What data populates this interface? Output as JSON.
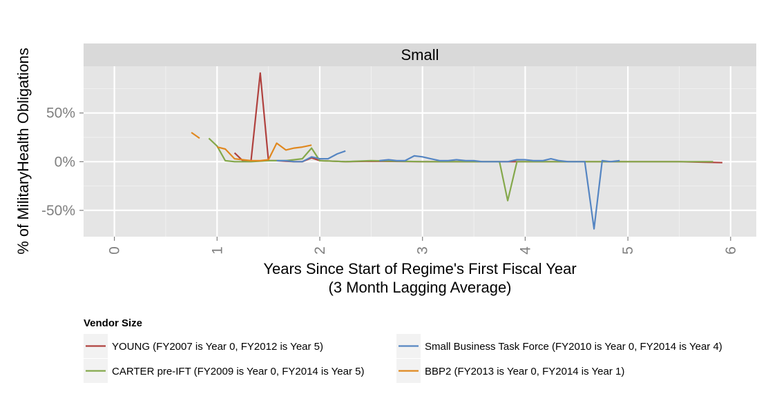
{
  "chart_data": {
    "type": "line",
    "facet_label": "Small",
    "xlabel_lines": [
      "Years Since Start of Regime's First Fiscal Year",
      "(3 Month Lagging Average)"
    ],
    "ylabel": "% of MilitaryHealth Obligations",
    "xlim": [
      -0.3,
      6.25
    ],
    "ylim": [
      -77,
      98
    ],
    "x_ticks": [
      0,
      1,
      2,
      3,
      4,
      5,
      6
    ],
    "x_tick_labels": [
      "0",
      "1",
      "2",
      "3",
      "4",
      "5",
      "6"
    ],
    "y_ticks": [
      -50,
      0,
      50
    ],
    "y_tick_labels": [
      "-50%",
      "0%",
      "50%"
    ],
    "grid": true,
    "legend": {
      "title": "Vendor Size",
      "position": "bottom"
    },
    "series": [
      {
        "name": "YOUNG (FY2007 is Year 0, FY2012 is Year 5)",
        "color": "#b0413e",
        "points": [
          [
            1.17,
            9
          ],
          [
            1.25,
            1
          ],
          [
            1.33,
            0.5
          ],
          [
            1.42,
            91
          ],
          [
            1.5,
            1
          ],
          [
            1.58,
            1
          ],
          [
            1.67,
            0.5
          ],
          [
            1.75,
            0
          ],
          [
            1.83,
            0
          ],
          [
            1.92,
            4
          ],
          [
            2.0,
            1
          ],
          [
            2.25,
            0
          ],
          [
            2.5,
            0.5
          ],
          [
            3.0,
            0
          ],
          [
            3.5,
            0
          ],
          [
            4.0,
            0
          ],
          [
            4.5,
            0
          ],
          [
            5.0,
            0
          ],
          [
            5.5,
            0
          ],
          [
            5.92,
            -1
          ]
        ]
      },
      {
        "name": "CARTER pre-IFT (FY2009 is Year 0, FY2014 is Year 5)",
        "color": "#84a84b",
        "points": [
          [
            0.92,
            24
          ],
          [
            1.0,
            16
          ],
          [
            1.08,
            1
          ],
          [
            1.17,
            0
          ],
          [
            1.33,
            0
          ],
          [
            1.5,
            1
          ],
          [
            1.67,
            1
          ],
          [
            1.83,
            3
          ],
          [
            1.92,
            14
          ],
          [
            2.0,
            1
          ],
          [
            2.25,
            0
          ],
          [
            2.5,
            1
          ],
          [
            3.0,
            0
          ],
          [
            3.5,
            0
          ],
          [
            3.75,
            0
          ],
          [
            3.83,
            -40
          ],
          [
            3.92,
            0
          ],
          [
            4.25,
            0
          ],
          [
            4.5,
            0
          ],
          [
            5.0,
            0
          ],
          [
            5.5,
            0
          ],
          [
            5.83,
            0
          ]
        ]
      },
      {
        "name": "Small Business Task Force (FY2010 is Year 0, FY2014 is Year 4)",
        "color": "#5585c2",
        "points": [
          [
            1.58,
            1
          ],
          [
            1.67,
            1
          ],
          [
            1.75,
            0
          ],
          [
            1.83,
            0
          ],
          [
            1.92,
            5
          ],
          [
            2.0,
            3
          ],
          [
            2.08,
            3
          ],
          [
            2.17,
            8
          ],
          [
            2.25,
            11
          ]
        ],
        "points_b": [
          [
            2.58,
            1
          ],
          [
            2.67,
            2
          ],
          [
            2.75,
            1
          ],
          [
            2.83,
            1
          ],
          [
            2.92,
            6
          ],
          [
            3.0,
            5
          ],
          [
            3.08,
            3
          ],
          [
            3.17,
            1
          ],
          [
            3.25,
            1
          ],
          [
            3.33,
            2
          ],
          [
            3.42,
            1
          ],
          [
            3.5,
            1
          ],
          [
            3.58,
            0
          ],
          [
            3.67,
            0
          ],
          [
            3.75,
            0
          ],
          [
            3.83,
            0
          ],
          [
            3.92,
            2
          ],
          [
            4.0,
            2
          ],
          [
            4.08,
            1
          ],
          [
            4.17,
            1
          ],
          [
            4.25,
            3
          ],
          [
            4.33,
            1
          ],
          [
            4.42,
            0
          ],
          [
            4.58,
            0
          ],
          [
            4.67,
            -69
          ],
          [
            4.75,
            1
          ],
          [
            4.83,
            0
          ],
          [
            4.92,
            1
          ]
        ]
      },
      {
        "name": "BBP2 (FY2013 is Year 0, FY2014 is Year 1)",
        "color": "#e0881f",
        "points_a": [
          [
            0.75,
            30
          ],
          [
            0.83,
            24
          ]
        ],
        "points": [
          [
            1.0,
            15
          ],
          [
            1.08,
            13
          ],
          [
            1.17,
            3
          ],
          [
            1.25,
            2
          ],
          [
            1.33,
            1
          ],
          [
            1.42,
            1
          ],
          [
            1.5,
            2
          ],
          [
            1.58,
            19
          ],
          [
            1.67,
            12
          ],
          [
            1.75,
            14
          ],
          [
            1.83,
            15
          ],
          [
            1.92,
            17
          ]
        ]
      }
    ]
  }
}
